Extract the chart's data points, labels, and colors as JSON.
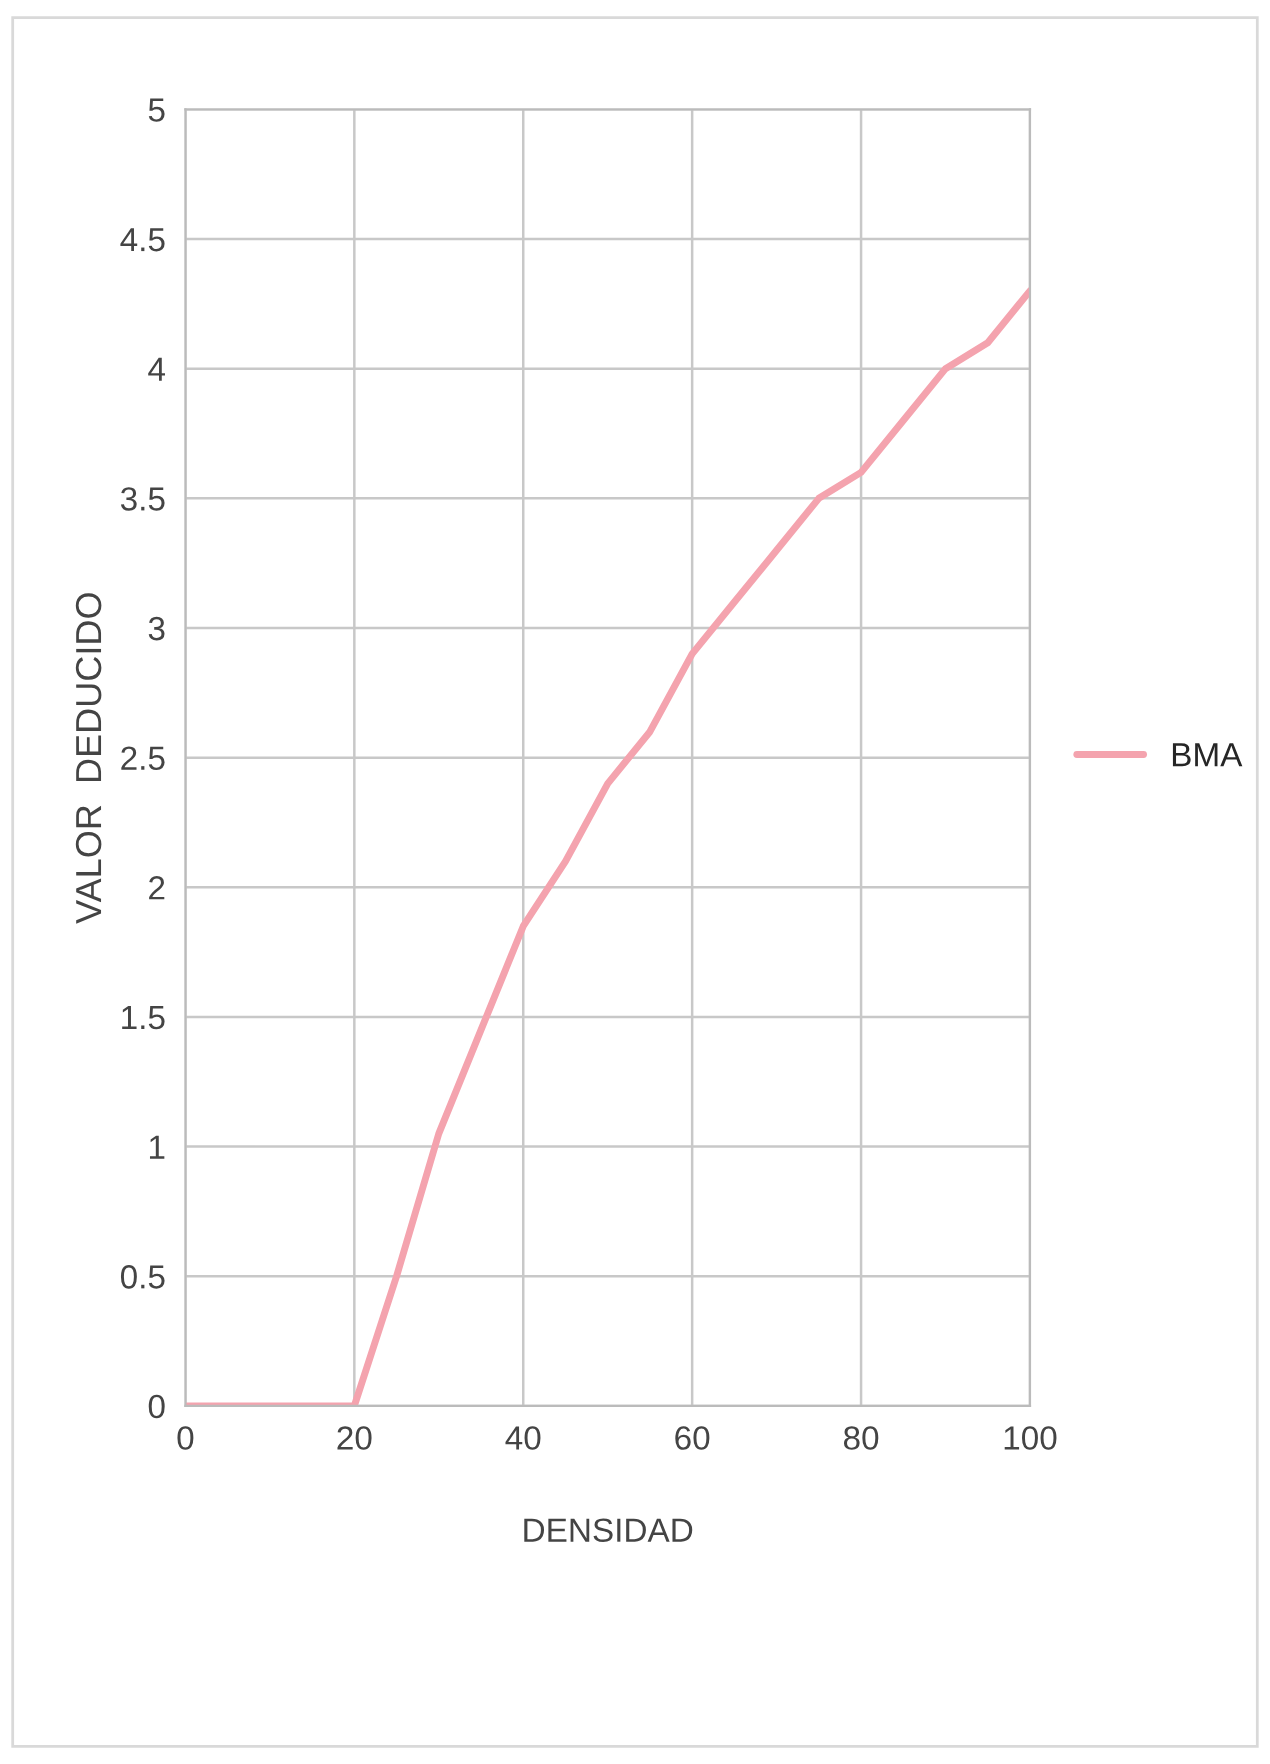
{
  "chart_data": {
    "type": "line",
    "xlabel": "DENSIDAD",
    "ylabel": "VALOR  DEDUCIDO",
    "x": [
      0,
      20,
      25,
      30,
      35,
      40,
      45,
      50,
      55,
      60,
      65,
      70,
      75,
      80,
      85,
      90,
      95,
      100
    ],
    "series": [
      {
        "name": "BMA",
        "color": "#f4a3ae",
        "values": [
          0,
          0,
          0.5,
          1.05,
          1.45,
          1.85,
          2.1,
          2.4,
          2.6,
          2.9,
          3.1,
          3.3,
          3.5,
          3.6,
          3.8,
          4.0,
          4.1,
          4.3
        ]
      }
    ],
    "xlim": [
      0,
      100
    ],
    "xticks": [
      0,
      20,
      40,
      60,
      80,
      100
    ],
    "ylim": [
      0,
      5
    ],
    "yticks": [
      0,
      0.5,
      1,
      1.5,
      2,
      2.5,
      3,
      3.5,
      4,
      4.5,
      5
    ],
    "grid": true,
    "legend": "right",
    "marker": "none",
    "line_style": "solid"
  }
}
